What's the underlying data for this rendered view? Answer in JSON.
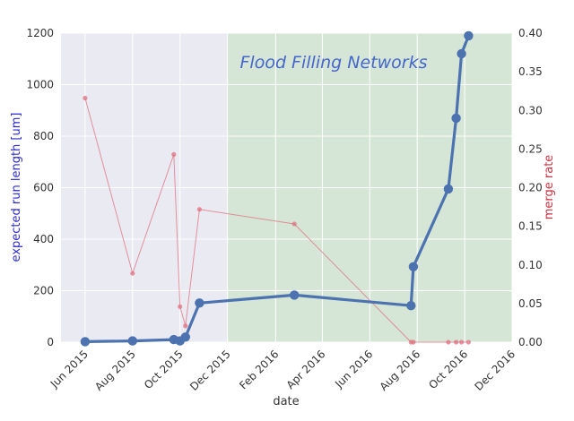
{
  "chart_data": {
    "type": "line",
    "title": "",
    "xlabel": "date",
    "ylabel": "expected run length [um]",
    "ylabel_right": "merge rate",
    "annotation": "Flood Filling Networks",
    "x_axis_type": "date",
    "xlim": [
      "2015-05-01",
      "2016-12-01"
    ],
    "ylim": [
      0,
      1200
    ],
    "ylim_right": [
      0,
      0.4
    ],
    "x_ticks": [
      {
        "date": "2015-06-01",
        "label": "Jun 2015"
      },
      {
        "date": "2015-08-01",
        "label": "Aug 2015"
      },
      {
        "date": "2015-10-01",
        "label": "Oct 2015"
      },
      {
        "date": "2015-12-01",
        "label": "Dec 2015"
      },
      {
        "date": "2016-02-01",
        "label": "Feb 2016"
      },
      {
        "date": "2016-04-01",
        "label": "Apr 2016"
      },
      {
        "date": "2016-06-01",
        "label": "Jun 2016"
      },
      {
        "date": "2016-08-01",
        "label": "Aug 2016"
      },
      {
        "date": "2016-10-01",
        "label": "Oct 2016"
      },
      {
        "date": "2016-12-01",
        "label": "Dec 2016"
      }
    ],
    "y_ticks_left": [
      "0",
      "200",
      "400",
      "600",
      "800",
      "1000",
      "1200"
    ],
    "y_ticks_right": [
      "0.00",
      "0.05",
      "0.10",
      "0.15",
      "0.20",
      "0.25",
      "0.30",
      "0.35",
      "0.40"
    ],
    "grid": true,
    "shaded_region": {
      "from": "2015-12-01",
      "to": "2016-12-01",
      "color": "#d3e6d3"
    },
    "series": [
      {
        "axis": "left",
        "color": "#4c72b0",
        "points": [
          {
            "x": "2015-06-01",
            "y": 2
          },
          {
            "x": "2015-08-01",
            "y": 5
          },
          {
            "x": "2015-09-23",
            "y": 10
          },
          {
            "x": "2015-10-01",
            "y": 5
          },
          {
            "x": "2015-10-08",
            "y": 20
          },
          {
            "x": "2015-10-26",
            "y": 152
          },
          {
            "x": "2016-02-25",
            "y": 183
          },
          {
            "x": "2016-07-24",
            "y": 142
          },
          {
            "x": "2016-07-27",
            "y": 293
          },
          {
            "x": "2016-09-10",
            "y": 595
          },
          {
            "x": "2016-09-20",
            "y": 870
          },
          {
            "x": "2016-09-27",
            "y": 1120
          },
          {
            "x": "2016-10-06",
            "y": 1190
          }
        ]
      },
      {
        "axis": "right",
        "color": "#e07080",
        "points": [
          {
            "x": "2015-06-01",
            "y": 0.316
          },
          {
            "x": "2015-08-01",
            "y": 0.089
          },
          {
            "x": "2015-09-23",
            "y": 0.243
          },
          {
            "x": "2015-10-01",
            "y": 0.046
          },
          {
            "x": "2015-10-08",
            "y": 0.021
          },
          {
            "x": "2015-10-26",
            "y": 0.172
          },
          {
            "x": "2016-02-25",
            "y": 0.153
          },
          {
            "x": "2016-07-24",
            "y": 0.0
          },
          {
            "x": "2016-07-27",
            "y": 0.0
          },
          {
            "x": "2016-09-10",
            "y": 0.0
          },
          {
            "x": "2016-09-20",
            "y": 0.0
          },
          {
            "x": "2016-09-27",
            "y": 0.0
          },
          {
            "x": "2016-10-06",
            "y": 0.0
          }
        ]
      }
    ]
  }
}
